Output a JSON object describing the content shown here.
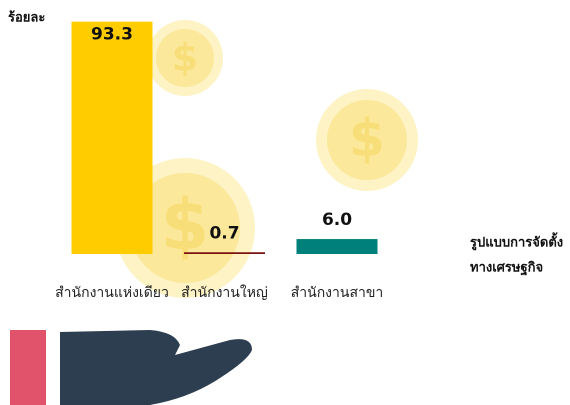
{
  "chart_data": {
    "type": "bar",
    "y_label": "ร้อยละ",
    "x_label": [
      "รูปแบบการจัดตั้ง",
      "ทางเศรษฐกิจ"
    ],
    "categories": [
      "สำนักงานแห่งเดียว",
      "สำนักงานใหญ่",
      "สำนักงานสาขา"
    ],
    "values": [
      93.3,
      0.7,
      6.0
    ],
    "value_labels": [
      "93.3",
      "0.7",
      "6.0"
    ],
    "colors": [
      "#ffcc00",
      "#7a1212",
      "#00807a"
    ],
    "ylim": [
      0,
      100
    ]
  }
}
